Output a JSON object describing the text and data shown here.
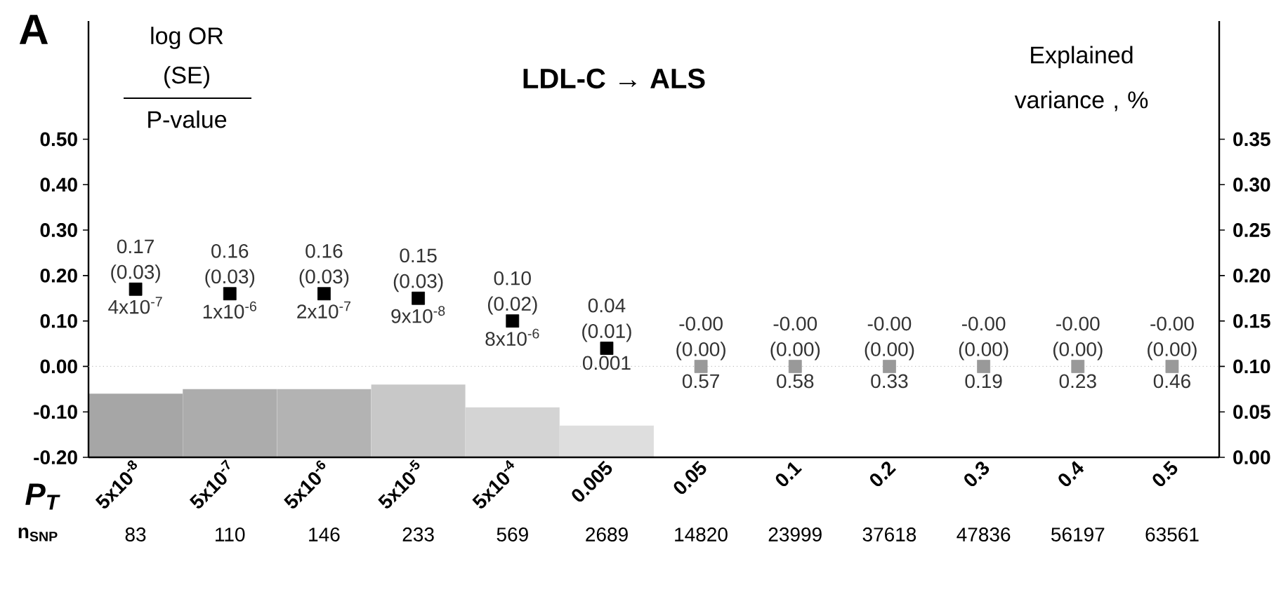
{
  "chart_data": {
    "type": "bar",
    "title": "LDL-C → ALS",
    "xlabel": "P$_{T}$",
    "y2label": "Explained variance , %",
    "categories": [
      "5x10$^{-8}$",
      "5x10$^{-7}$",
      "5x10$^{-6}$",
      "5x10$^{-5}$",
      "5x10$^{-4}$",
      "0.005",
      "0.05",
      "0.1",
      "0.2",
      "0.3",
      "0.4",
      "0.5"
    ],
    "series": [
      {
        "type": "scatter",
        "marker": "square",
        "values": [
          0.17,
          0.16,
          0.16,
          0.15,
          0.1,
          0.04,
          0,
          0,
          0,
          0,
          0,
          0
        ],
        "colors": [
          "#000000",
          "#000000",
          "#000000",
          "#000000",
          "#000000",
          "#000000",
          "#999999",
          "#999999",
          "#999999",
          "#999999",
          "#999999",
          "#999999"
        ],
        "value_labels": [
          "0.17",
          "0.16",
          "0.16",
          "0.15",
          "0.10",
          "0.04",
          "-0.00",
          "-0.00",
          "-0.00",
          "-0.00",
          "-0.00",
          "-0.00"
        ]
      },
      {
        "axis": "y2",
        "values": [
          0.07,
          0.075,
          0.075,
          0.08,
          0.055,
          0.035,
          0,
          0,
          0,
          0,
          0,
          0
        ],
        "colors": [
          "#a6a6a6",
          "#acacac",
          "#b3b3b3",
          "#c8c8c8",
          "#d4d4d4",
          "#dedede",
          "#d9d9d9",
          "#d9d9d9",
          "#d9d9d9",
          "#d9d9d9",
          "#d9d9d9",
          "#d9d9d9"
        ]
      }
    ],
    "ylim": [
      -0.2,
      0.76
    ],
    "yticks": [
      {
        "value": -0.2,
        "label": "-0.20"
      },
      {
        "value": -0.1,
        "label": "-0.10"
      },
      {
        "value": 0,
        "label": "0.00"
      },
      {
        "value": 0.1,
        "label": "0.10"
      },
      {
        "value": 0.2,
        "label": "0.20"
      },
      {
        "value": 0.3,
        "label": "0.30"
      },
      {
        "value": 0.4,
        "label": "0.40"
      },
      {
        "value": 0.5,
        "label": "0.50"
      }
    ],
    "y2lim": [
      0,
      0.48
    ],
    "y2ticks": [
      {
        "value": 0,
        "label": "0.00"
      },
      {
        "value": 0.05,
        "label": "0.05"
      },
      {
        "value": 0.1,
        "label": "0.10"
      },
      {
        "value": 0.15,
        "label": "0.15"
      },
      {
        "value": 0.2,
        "label": "0.20"
      },
      {
        "value": 0.25,
        "label": "0.25"
      },
      {
        "value": 0.3,
        "label": "0.30"
      },
      {
        "value": 0.35,
        "label": "0.35"
      }
    ],
    "ref_lines": [
      {
        "axis": "y",
        "value": 0,
        "color": "#bfbfbf",
        "line_style": "dotted"
      }
    ],
    "annotations": [
      "A",
      "log OR",
      "(SE)",
      "P-value",
      "n$_{SNP}$",
      "83",
      "110",
      "146",
      "233",
      "569",
      "2689",
      "14820",
      "23999",
      "37618",
      "47836",
      "56197",
      "63561",
      "(0.03)",
      "(0.03)",
      "(0.03)",
      "(0.03)",
      "(0.02)",
      "(0.01)",
      "(0.00)",
      "(0.00)",
      "(0.00)",
      "(0.00)",
      "(0.00)",
      "(0.00)",
      "4x10$^{-7}$",
      "1x10$^{-6}$",
      "2x10$^{-7}$",
      "9x10$^{-8}$",
      "8x10$^{-6}$",
      "0.001",
      "0.57",
      "0.58",
      "0.33",
      "0.19",
      "0.23",
      "0.46"
    ]
  }
}
